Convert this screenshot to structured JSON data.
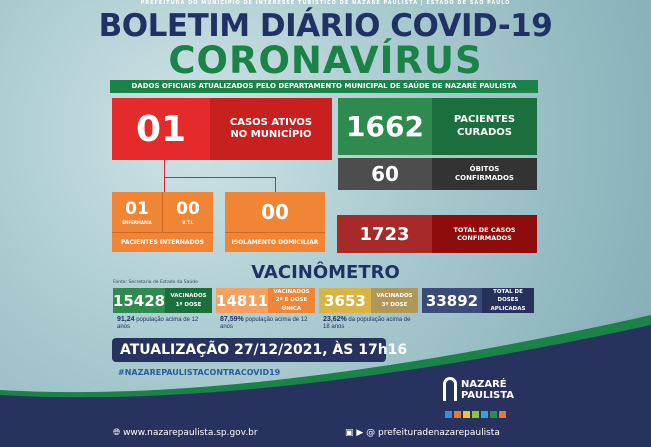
{
  "header": {
    "top_line": "PREFEITURA DO MUNICÍPIO DE INTERESSE TURÍSTICO DE NAZARÉ PAULISTA  |  ESTADO DE SÃO PAULO",
    "title": "BOLETIM DIÁRIO COVID-19",
    "subtitle": "CORONAVÍRUS",
    "strip": "DADOS OFICIAIS ATUALIZADOS PELO DEPARTAMENTO MUNICIPAL DE SAÚDE DE NAZARÉ PAULISTA"
  },
  "stats": {
    "active": {
      "value": "01",
      "label": "CASOS ATIVOS NO MUNICÍPIO"
    },
    "recovered": {
      "value": "1662",
      "label": "PACIENTES CURADOS"
    },
    "deaths": {
      "value": "60",
      "label": "ÓBITOS CONFIRMADOS"
    },
    "confirmed": {
      "value": "1723",
      "label": "TOTAL DE CASOS CONFIRMADOS"
    },
    "ward": {
      "value": "01",
      "label": "ENFERMARIA"
    },
    "icu": {
      "value": "00",
      "label": "U.T.I."
    },
    "hospitalized_label": "PACIENTES INTERNADOS",
    "home": {
      "value": "00",
      "label": "ISOLAMENTO DOMICILIAR"
    }
  },
  "vaccine": {
    "title": "VACINÔMETRO",
    "source": "Fonte: Secretaria de Estado da Saúde",
    "items": [
      {
        "value": "15428",
        "label1": "VACINADOS",
        "label2": "1ª DOSE",
        "pct": "91,24",
        "note": "população acima de 12 anos",
        "color": "#2e8a4f",
        "dark": "#1b6f3c"
      },
      {
        "value": "14811",
        "label1": "VACINADOS",
        "label2": "2ª E DOSE ÚNICA",
        "pct": "87,59%",
        "note": "população acima de 12 anos",
        "color": "#f7a060",
        "dark": "#f08535"
      },
      {
        "value": "3653",
        "label1": "VACINADOS",
        "label2": "3ª DOSE",
        "pct": "23,62%",
        "note": "da população acima de 18 anos",
        "color": "#d9b444",
        "dark": "#b09758"
      },
      {
        "value": "33892",
        "label1": "TOTAL DE DOSES",
        "label2": "APLICADAS",
        "pct": "",
        "note": "",
        "color": "#3b4b78",
        "dark": "#27305c"
      }
    ]
  },
  "footer": {
    "update": "ATUALIZAÇÃO 27/12/2021, ÀS 17h16",
    "hashtag": "#NAZAREPAULISTACONTRACOVID19",
    "website": "www.nazarepaulista.sp.gov.br",
    "social": "prefeituradenazarepaulista",
    "logo": "NAZARÉ PAULISTA CIDADE PRESÉPIO"
  },
  "colors": {
    "navy": "#27325f",
    "green": "#1b8248",
    "red": "#e42a2a",
    "orange": "#f08535"
  }
}
